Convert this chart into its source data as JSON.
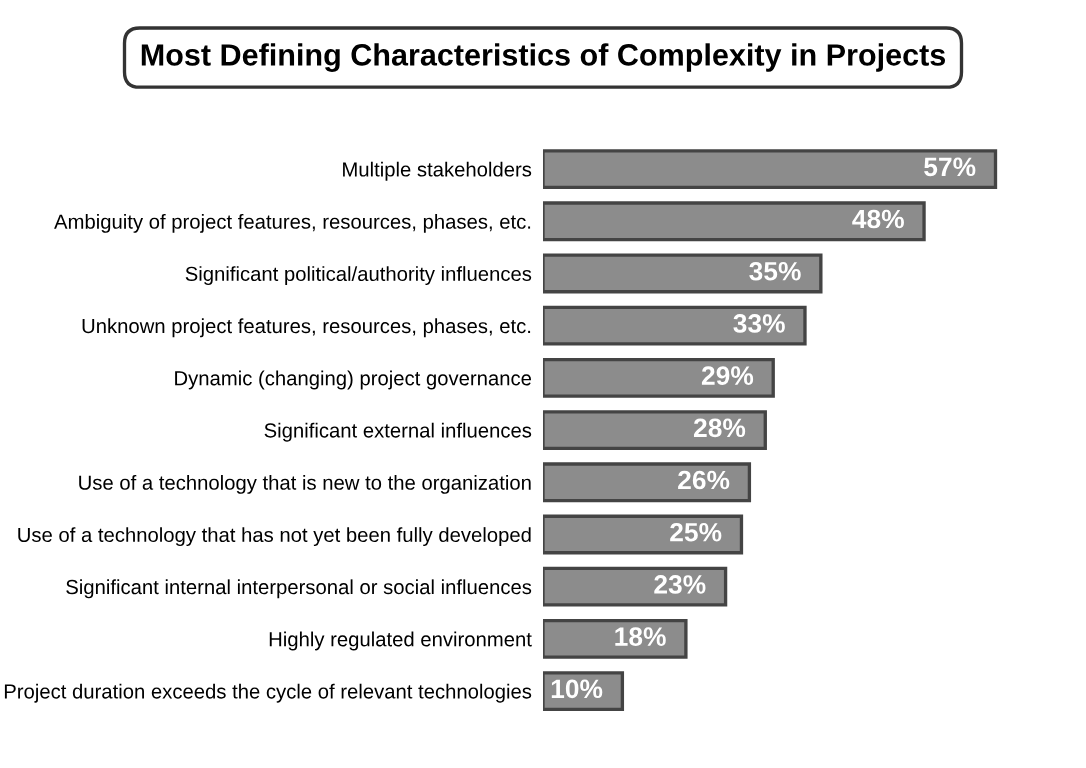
{
  "chart_data": {
    "type": "bar",
    "orientation": "horizontal",
    "title": "Most Defining Characteristics of Complexity in Projects",
    "categories": [
      "Multiple stakeholders",
      "Ambiguity of project features, resources, phases, etc.",
      "Significant political/authority influences",
      "Unknown project features, resources, phases, etc.",
      "Dynamic (changing) project governance",
      "Significant external influences",
      "Use of a technology that is new to the organization",
      "Use of a technology that has not yet been fully developed",
      "Significant internal interpersonal or social influences",
      "Highly regulated environment",
      "Project duration exceeds the cycle of relevant technologies"
    ],
    "values": [
      57,
      48,
      35,
      33,
      29,
      28,
      26,
      25,
      23,
      18,
      10
    ],
    "value_labels": [
      "57%",
      "48%",
      "35%",
      "33%",
      "29%",
      "28%",
      "26%",
      "25%",
      "23%",
      "18%",
      "10%"
    ],
    "color": "#8c8c8c",
    "grid": false,
    "legend": false
  }
}
